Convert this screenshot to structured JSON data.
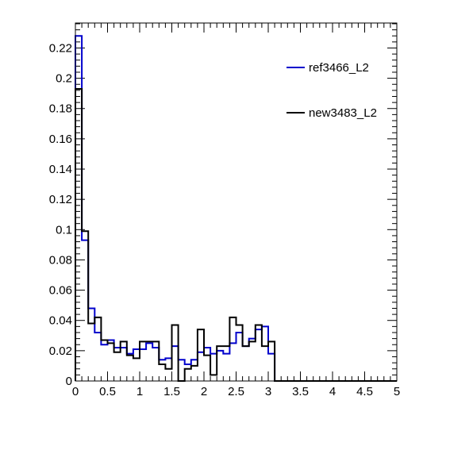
{
  "chart_data": {
    "type": "step-histogram",
    "title": "",
    "xlabel": "",
    "ylabel": "",
    "xlim": [
      0,
      5
    ],
    "ylim": [
      0,
      0.2365
    ],
    "bin_width": 0.1,
    "x_ticks": [
      "0",
      "0.5",
      "1",
      "1.5",
      "2",
      "2.5",
      "3",
      "3.5",
      "4",
      "4.5",
      "5"
    ],
    "x_tick_values": [
      0,
      0.5,
      1,
      1.5,
      2,
      2.5,
      3,
      3.5,
      4,
      4.5,
      5
    ],
    "y_ticks": [
      "0",
      "0.02",
      "0.04",
      "0.06",
      "0.08",
      "0.1",
      "0.12",
      "0.14",
      "0.16",
      "0.18",
      "0.2",
      "0.22"
    ],
    "y_tick_values": [
      0,
      0.02,
      0.04,
      0.06,
      0.08,
      0.1,
      0.12,
      0.14,
      0.16,
      0.18,
      0.2,
      0.22
    ],
    "legend_position": "top-right",
    "series": [
      {
        "name": "ref3466_L2",
        "color": "#0000cc",
        "values": [
          0.228,
          0.093,
          0.048,
          0.032,
          0.024,
          0.027,
          0.022,
          0.022,
          0.018,
          0.021,
          0.021,
          0.025,
          0.022,
          0.014,
          0.015,
          0.023,
          0.014,
          0.011,
          0.014,
          0.019,
          0.022,
          0.018,
          0.02,
          0.018,
          0.025,
          0.032,
          0.023,
          0.028,
          0.034,
          0.036,
          0.018,
          0.0,
          0.0,
          0.0,
          0.0,
          0.0,
          0.0,
          0.0,
          0.0,
          0.0,
          0.0,
          0.0,
          0.0,
          0.0,
          0.0,
          0.0,
          0.0,
          0.0,
          0.0,
          0.0
        ]
      },
      {
        "name": "new3483_L2",
        "color": "#000000",
        "values": [
          0.193,
          0.099,
          0.038,
          0.042,
          0.027,
          0.025,
          0.019,
          0.026,
          0.017,
          0.015,
          0.026,
          0.026,
          0.026,
          0.011,
          0.008,
          0.037,
          0.0,
          0.008,
          0.01,
          0.034,
          0.017,
          0.004,
          0.023,
          0.023,
          0.042,
          0.037,
          0.023,
          0.026,
          0.037,
          0.023,
          0.026,
          0.0,
          0.0,
          0.0,
          0.0,
          0.0,
          0.0,
          0.0,
          0.0,
          0.0,
          0.0,
          0.0,
          0.0,
          0.0,
          0.0,
          0.0,
          0.0,
          0.0,
          0.0,
          0.0
        ]
      }
    ]
  }
}
